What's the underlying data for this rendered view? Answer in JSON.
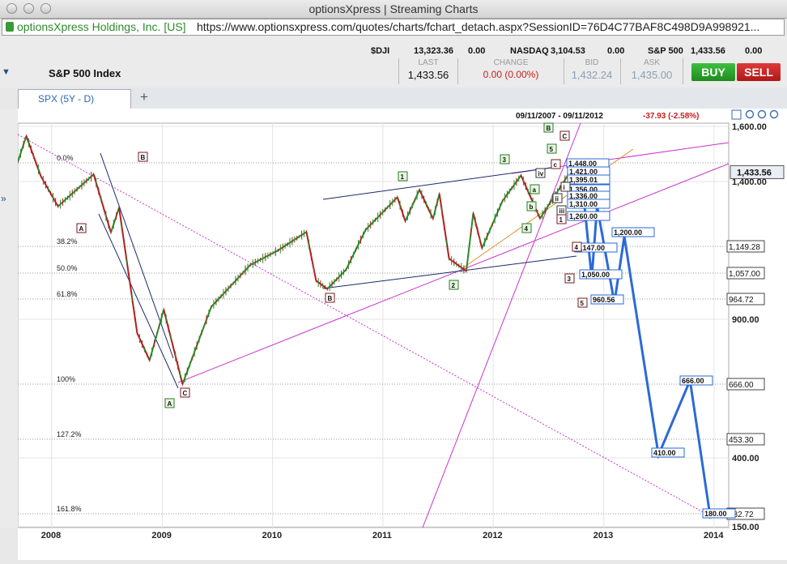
{
  "window": {
    "title": "optionsXpress | Streaming Charts"
  },
  "urlbar": {
    "ev_label": "optionsXpress Holdings, Inc. [US]",
    "url": "https://www.optionsxpress.com/quotes/charts/fchart_detach.aspx?SessionID=76D4C77BAF8C498D9A998921..."
  },
  "ticker": [
    {
      "label": "$DJI",
      "value": "13,323.36",
      "change": "0.00"
    },
    {
      "label": "NASDAQ",
      "value": "3,104.53",
      "change": "0.00"
    },
    {
      "label": "S&P 500",
      "value": "1,433.56",
      "change": "0.00"
    }
  ],
  "quote": {
    "symbol_name": "S&P 500 Index",
    "last_label": "LAST",
    "last": "1,433.56",
    "change_label": "CHANGE",
    "change": "0.00 (0.00%)",
    "bid_label": "BID",
    "bid": "1,432.24",
    "ask_label": "ASK",
    "ask": "1,435.00",
    "buy_label": "BUY",
    "sell_label": "SELL"
  },
  "tab": {
    "label": "SPX (5Y - D)",
    "add_label": "+"
  },
  "chart_data": {
    "type": "line",
    "header": {
      "range": "09/11/2007 - 09/11/2012",
      "change": "-37.93 (-2.58%)"
    },
    "x_ticks": [
      "2008",
      "2009",
      "2010",
      "2011",
      "2012",
      "2013",
      "2014"
    ],
    "y_ticks": [
      "1,600.00",
      "1,400.00",
      "900.00",
      "400.00",
      "150.00"
    ],
    "ylim": [
      150,
      1600
    ],
    "price_flag": "1,433.56",
    "fib_levels": [
      {
        "label": "0.0%",
        "price_label": ""
      },
      {
        "label": "38.2%",
        "price_label": "1,149.28"
      },
      {
        "label": "50.0%",
        "price_label": "1,057.00"
      },
      {
        "label": "61.8%",
        "price_label": "964.72"
      },
      {
        "label": "100%",
        "price_label": "666.00"
      },
      {
        "label": "127.2%",
        "price_label": "453.30"
      },
      {
        "label": "161.8%",
        "price_label": "182.72"
      }
    ],
    "series": [
      {
        "name": "",
        "x": [
          "2007-09-11",
          "2007-10-09",
          "2007-11-26",
          "2008-01-22",
          "2008-05-19",
          "2008-07-15",
          "2008-08-11",
          "2008-10-10",
          "2008-11-20",
          "2009-01-06",
          "2009-03-09",
          "2009-06-12",
          "2009-10-19",
          "2010-01-19",
          "2010-04-23",
          "2010-05-25",
          "2010-07-01",
          "2010-09-01",
          "2010-11-05",
          "2011-02-18",
          "2011-03-16",
          "2011-05-02",
          "2011-06-16",
          "2011-07-07",
          "2011-08-08",
          "2011-10-04",
          "2011-10-27",
          "2011-11-25",
          "2012-02-01",
          "2012-04-02",
          "2012-06-04",
          "2012-09-11"
        ],
        "y": [
          1471,
          1565,
          1420,
          1310,
          1426,
          1215,
          1305,
          850,
          752,
          935,
          666,
          945,
          1097,
          1150,
          1217,
          1040,
          1010,
          1080,
          1225,
          1343,
          1256,
          1370,
          1265,
          1355,
          1120,
          1075,
          1285,
          1158,
          1330,
          1422,
          1266,
          1434
        ]
      },
      {
        "name": "",
        "x": [
          "2012-09-11",
          "2012-10-12",
          "2012-10-25",
          "2012-11-22",
          "2012-12-10",
          "2013-02-05",
          "2013-03-10",
          "2013-07-01",
          "2013-10-08",
          "2013-10-15",
          "2013-12-20"
        ],
        "y": [
          1434,
          1395,
          1356,
          1050,
          1310,
          960,
          1200,
          410,
          666,
          666,
          180
        ]
      }
    ],
    "wave_labels": [
      "A",
      "B",
      "C",
      "A",
      "B",
      "1",
      "2",
      "3",
      "4",
      "5",
      "B",
      "C",
      "a",
      "b",
      "c",
      "iv",
      "iii",
      "ii",
      "i"
    ],
    "projection_labels": [
      "1,448.00",
      "1,421.00",
      "1,395.01",
      "1,356.00",
      "1,336.00",
      "1,310.00",
      "1,260.00",
      "1,200.00",
      "1,147.00",
      "1,050.00",
      "960.56",
      "666.00",
      "410.00",
      "180.00"
    ],
    "projection_wave_labels": [
      "4",
      "3",
      "5",
      "1"
    ]
  }
}
